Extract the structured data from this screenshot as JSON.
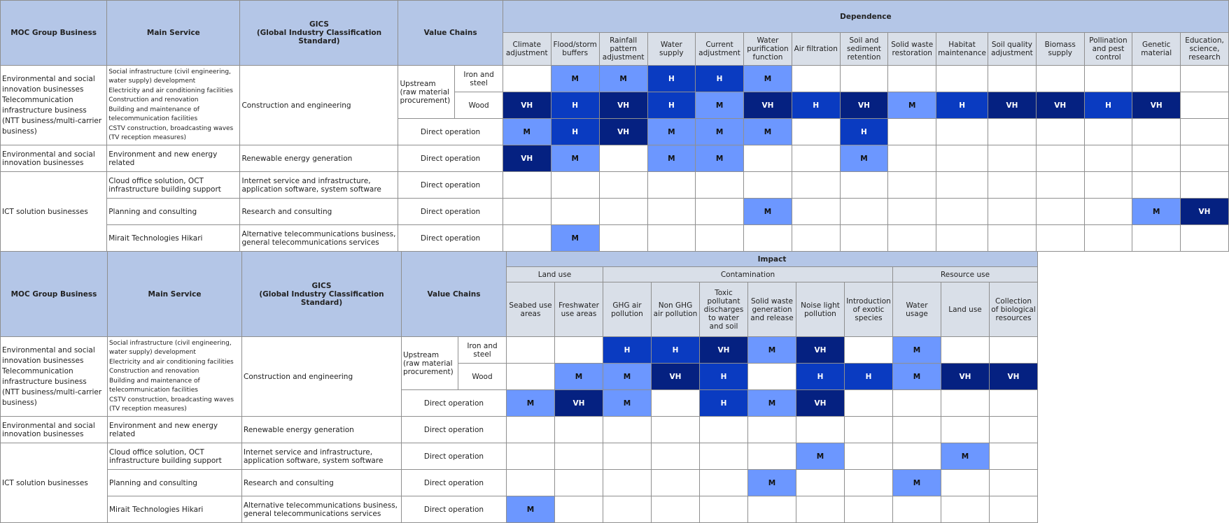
{
  "headers": {
    "moc_group_business": "MOC Group Business",
    "main_service": "Main Service",
    "gics_line1": "GICS",
    "gics_line2": "(Global Industry Classification Standard)",
    "value_chains": "Value Chains"
  },
  "businesses": {
    "env_telecom": "Environmental and social innovation businesses Telecommunication infrastructure business (NTT business/multi-carrier business)",
    "env": "Environmental and social innovation businesses",
    "ict": "ICT solution businesses"
  },
  "services": {
    "construction": [
      "Social infrastructure (civil engineering, water supply) development",
      "Electricity and air conditioning facilities",
      "Construction and renovation",
      "Building and maintenance of telecommunication facilities",
      "CSTV construction, broadcasting waves (TV reception measures)"
    ],
    "env_energy": "Environment and new energy related",
    "cloud": "Cloud office solution, OCT infrastructure building support",
    "planning": "Planning and consulting",
    "mirait": "Mirait Technologies Hikari"
  },
  "gics": {
    "construction": "Construction and engineering",
    "renewable": "Renewable energy generation",
    "internet": "Internet service and infrastructure, application software, system software",
    "research": "Research and consulting",
    "telecom": "Alternative telecommunications business, general telecommunications services"
  },
  "value_chains": {
    "upstream": "Upstream (raw material procurement)",
    "iron_steel": "Iron and steel",
    "wood": "Wood",
    "direct": "Direct operation"
  },
  "dependence": {
    "title": "Dependence",
    "columns": [
      "Climate adjustment",
      "Flood/storm buffers",
      "Rainfall pattern adjustment",
      "Water supply",
      "Current adjustment",
      "Water purification function",
      "Air filtration",
      "Soil and sediment retention",
      "Solid waste restoration",
      "Habitat maintenance",
      "Soil quality adjustment",
      "Biomass supply",
      "Pollination and pest control",
      "Genetic material",
      "Education, science, research"
    ],
    "rows": [
      [
        "",
        "M",
        "M",
        "H",
        "H",
        "M",
        "",
        "",
        "",
        "",
        "",
        "",
        "",
        "",
        ""
      ],
      [
        "VH",
        "H",
        "VH",
        "H",
        "M",
        "VH",
        "H",
        "VH",
        "M",
        "H",
        "VH",
        "VH",
        "H",
        "VH",
        ""
      ],
      [
        "M",
        "H",
        "VH",
        "M",
        "M",
        "M",
        "",
        "H",
        "",
        "",
        "",
        "",
        "",
        "",
        ""
      ],
      [
        "VH",
        "M",
        "",
        "M",
        "M",
        "",
        "",
        "M",
        "",
        "",
        "",
        "",
        "",
        "",
        ""
      ],
      [
        "",
        "",
        "",
        "",
        "",
        "",
        "",
        "",
        "",
        "",
        "",
        "",
        "",
        "",
        ""
      ],
      [
        "",
        "",
        "",
        "",
        "",
        "M",
        "",
        "",
        "",
        "",
        "",
        "",
        "",
        "M",
        "VH"
      ],
      [
        "",
        "M",
        "",
        "",
        "",
        "",
        "",
        "",
        "",
        "",
        "",
        "",
        "",
        "",
        ""
      ]
    ]
  },
  "impact": {
    "title": "Impact",
    "categories": [
      {
        "name": "Land use",
        "span": 2
      },
      {
        "name": "Contamination",
        "span": 6
      },
      {
        "name": "Resource use",
        "span": 3
      }
    ],
    "columns": [
      "Seabed use areas",
      "Freshwater use areas",
      "GHG air pollution",
      "Non GHG air pollution",
      "Toxic pollutant discharges to water and soil",
      "Solid waste generation and release",
      "Noise light pollution",
      "Introduction of exotic species",
      "Water usage",
      "Land use",
      "Collection of biological resources"
    ],
    "rows": [
      [
        "",
        "",
        "H",
        "H",
        "VH",
        "M",
        "VH",
        "",
        "M",
        "",
        ""
      ],
      [
        "",
        "M",
        "M",
        "VH",
        "H",
        "",
        "H",
        "H",
        "M",
        "VH",
        "VH"
      ],
      [
        "M",
        "VH",
        "M",
        "",
        "H",
        "M",
        "VH",
        "",
        "",
        "",
        ""
      ],
      [
        "",
        "",
        "",
        "",
        "",
        "",
        "",
        "",
        "",
        "",
        ""
      ],
      [
        "",
        "",
        "",
        "",
        "",
        "",
        "M",
        "",
        "",
        "M",
        ""
      ],
      [
        "",
        "",
        "",
        "",
        "",
        "M",
        "",
        "",
        "M",
        "",
        ""
      ],
      [
        "M",
        "",
        "",
        "",
        "",
        "",
        "",
        "",
        "",
        "",
        ""
      ]
    ]
  }
}
